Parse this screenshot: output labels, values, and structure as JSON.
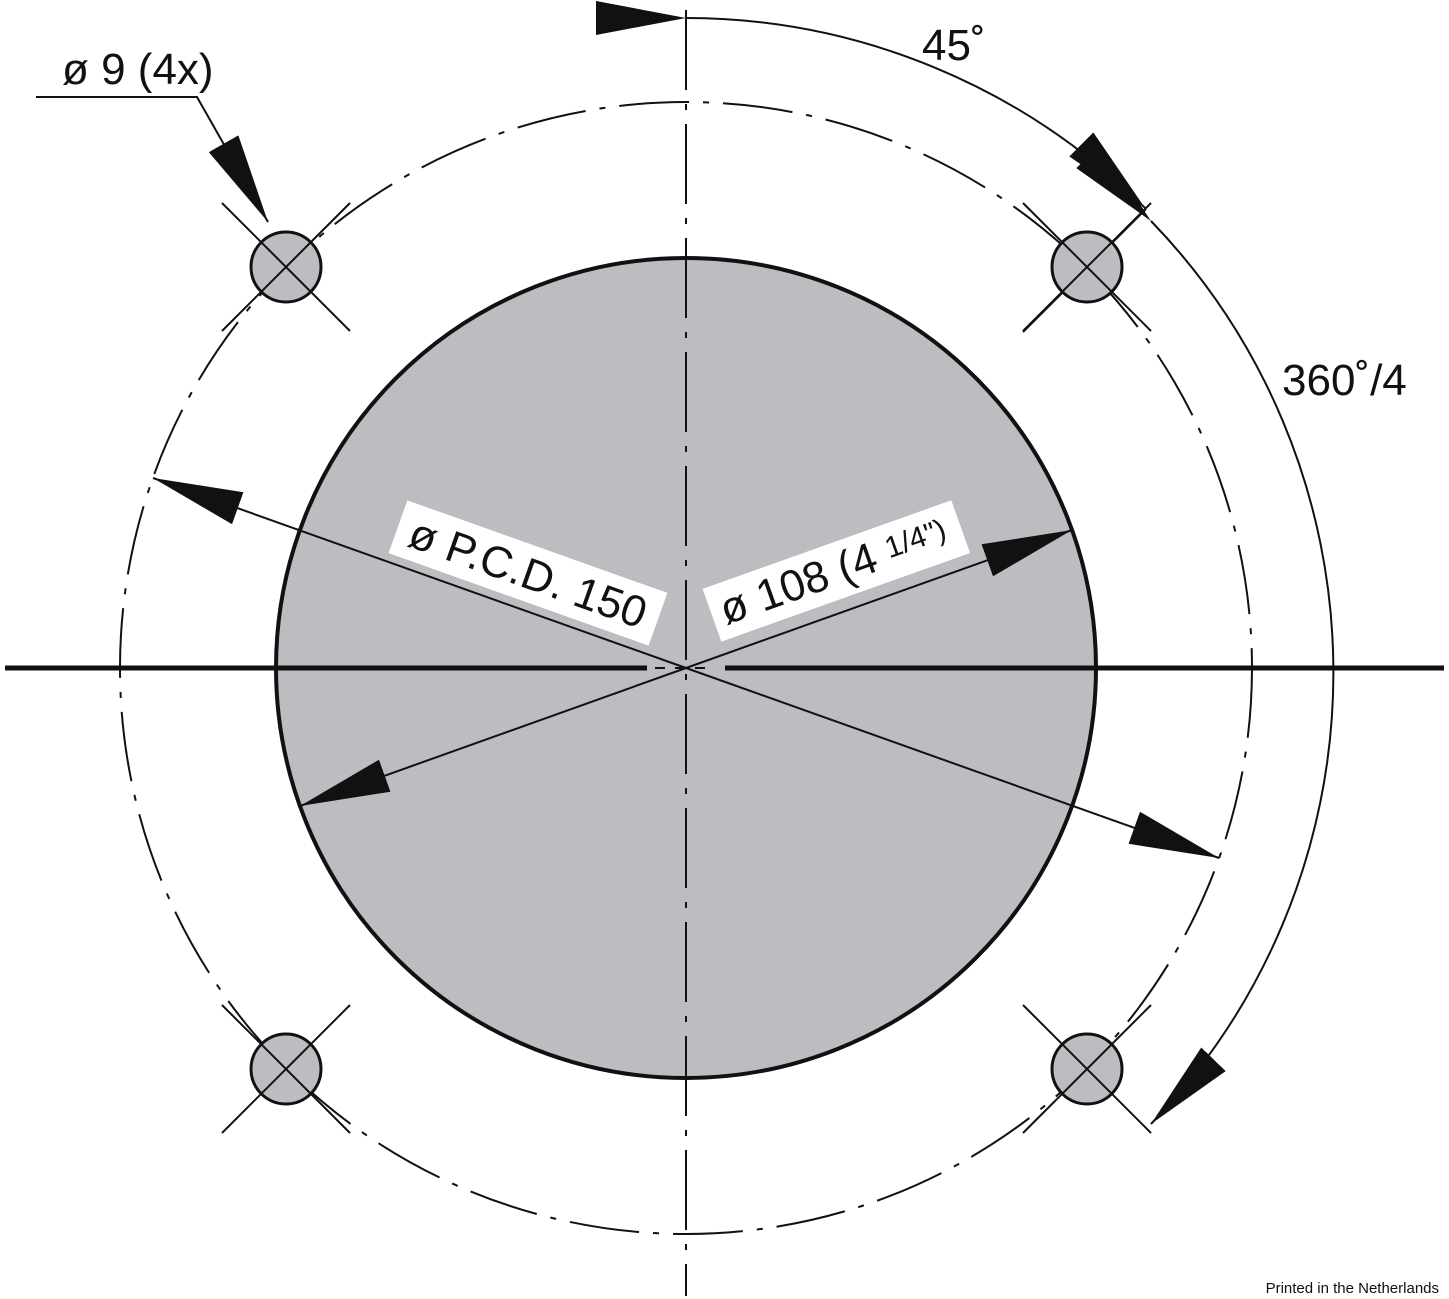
{
  "labels": {
    "hole_callout": "ø 9 (4x)",
    "angle_offset": "45˚",
    "angle_spacing": "360˚/4",
    "pcd_dimension": "ø P.C.D. 150",
    "bore_dimension": "ø 108 (4 ",
    "bore_fraction": "1/4\")",
    "footer": "Printed in the Netherlands"
  },
  "colors": {
    "line": "#111111",
    "fill": "#bcbdc1",
    "background": "#ffffff"
  }
}
